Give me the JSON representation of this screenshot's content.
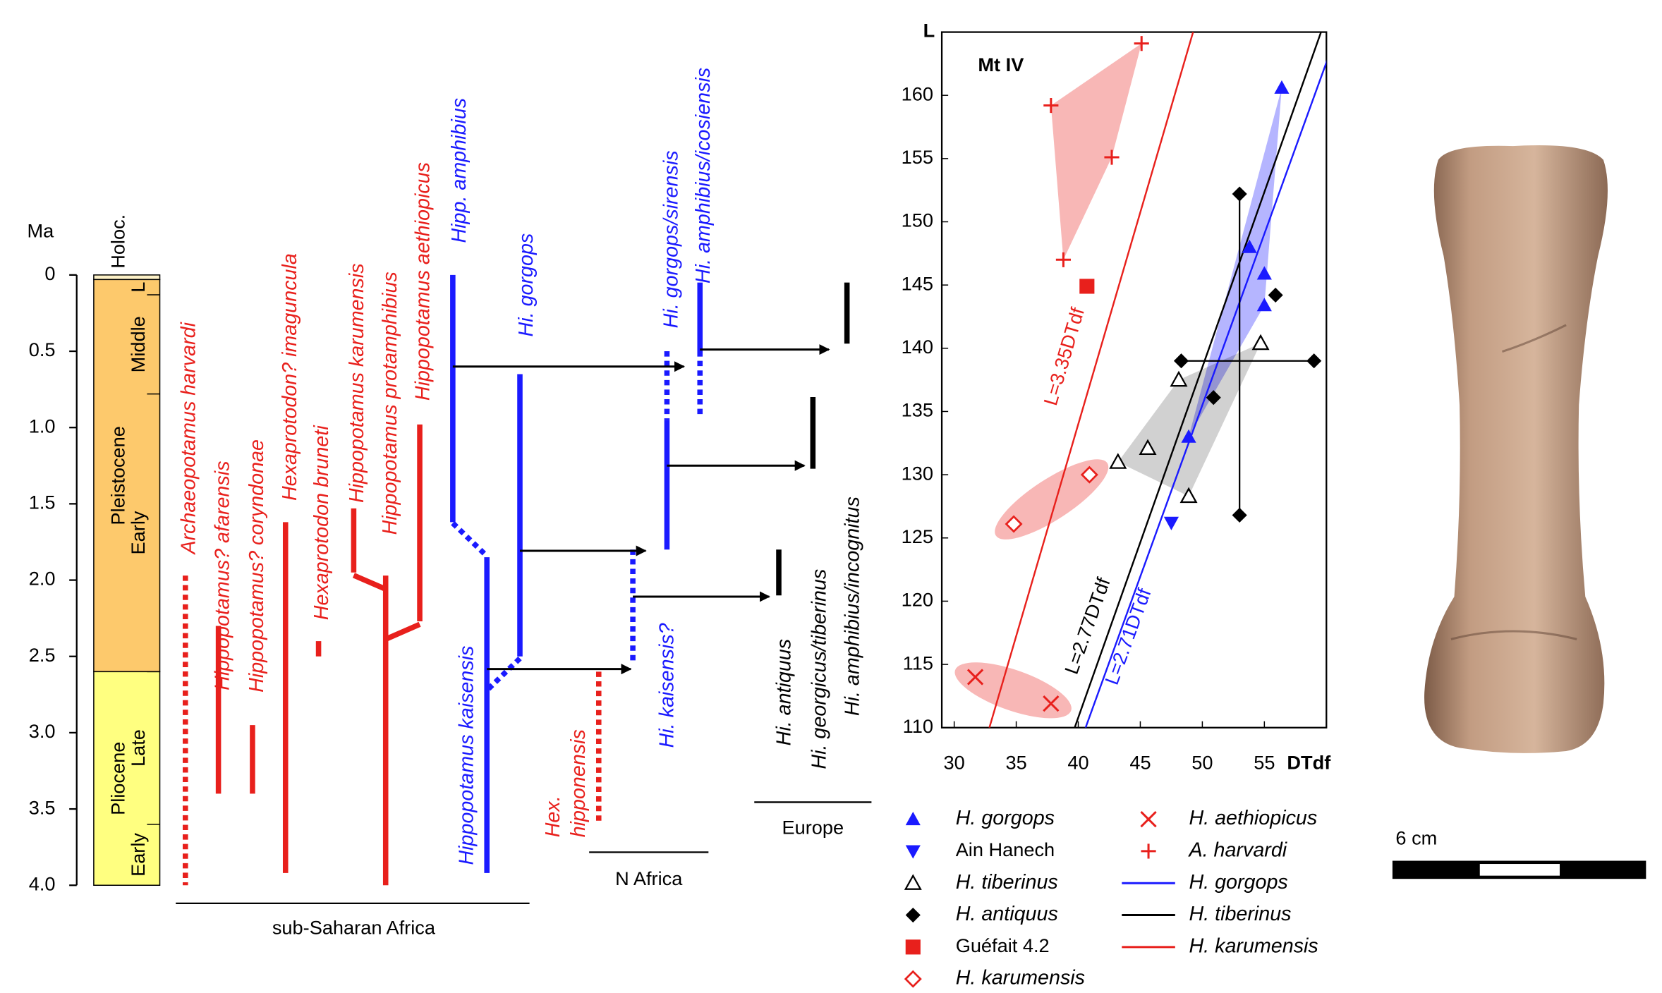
{
  "chart_data": [
    {
      "type": "range",
      "y_label": "Ma",
      "ylim": [
        0,
        4
      ],
      "yticks": [
        0,
        0.5,
        {
          "value": 1,
          "label": "1.0"
        },
        1.5,
        {
          "value": 2,
          "label": "2.0"
        },
        2.5,
        {
          "value": 3,
          "label": "3.0"
        },
        3.5,
        {
          "value": 4,
          "label": "4.0"
        }
      ],
      "holocene": {
        "name": "Holoc.",
        "range": [
          0,
          0.03
        ]
      },
      "epochs": [
        {
          "name": "Pleistocene",
          "range": [
            0.03,
            2.6
          ],
          "color": "#fdc96c"
        },
        {
          "name": "Pliocene",
          "range": [
            2.6,
            4
          ],
          "color": "#ffff80"
        }
      ],
      "stages": [
        {
          "name": "L",
          "range": [
            0.03,
            0.13
          ]
        },
        {
          "name": "Middle",
          "range": [
            0.13,
            0.78
          ]
        },
        {
          "name": "Early",
          "range": [
            0.78,
            2.6
          ]
        },
        {
          "name": "Late",
          "range": [
            2.6,
            3.6
          ]
        },
        {
          "name": "Early",
          "range": [
            3.6,
            4
          ]
        }
      ],
      "taxa": [
        {
          "name": [
            "Archaeopotamus harvardi"
          ],
          "color": "#e8201c",
          "segments": [
            {
              "range": [
                1.97,
                4
              ],
              "style": "dotted"
            }
          ]
        },
        {
          "name": [
            "Hippopotamus? afarensis"
          ],
          "color": "#e8201c",
          "segments": [
            {
              "range": [
                2.3,
                3.4
              ],
              "style": "solid"
            }
          ]
        },
        {
          "name": [
            "Hippopotamus? coryndonae"
          ],
          "color": "#e8201c",
          "segments": [
            {
              "range": [
                2.95,
                3.4
              ],
              "style": "solid"
            }
          ]
        },
        {
          "name": [
            "Hexaprotodon? imaguncula"
          ],
          "color": "#e8201c",
          "segments": [
            {
              "range": [
                1.62,
                3.92
              ],
              "style": "solid"
            }
          ]
        },
        {
          "name": [
            "Hexaprotodon bruneti"
          ],
          "color": "#e8201c",
          "segments": [
            {
              "range": [
                2.4,
                2.5
              ],
              "style": "solid"
            }
          ]
        },
        {
          "name": [
            "Hippopotamus karumensis"
          ],
          "color": "#e8201c",
          "segments": [
            {
              "range": [
                1.53,
                1.95
              ],
              "style": "solid"
            }
          ]
        },
        {
          "name": [
            "Hippopotamus protamphibius"
          ],
          "color": "#e8201c",
          "segments": [
            {
              "range": [
                1.97,
                4
              ],
              "style": "solid"
            }
          ]
        },
        {
          "name": [
            "Hippopotamus aethiopicus"
          ],
          "color": "#e8201c",
          "segments": [
            {
              "range": [
                0.98,
                2.27
              ],
              "style": "solid"
            }
          ]
        },
        {
          "name": [
            "Hipp. amphibius"
          ],
          "color": "#1a1aff",
          "segments": [
            {
              "range": [
                0,
                1.62
              ],
              "style": "solid"
            }
          ]
        },
        {
          "name": [
            "Hippopotamus kaisensis"
          ],
          "color": "#1a1aff",
          "segments": [
            {
              "range": [
                1.85,
                3.92
              ],
              "style": "solid"
            }
          ]
        },
        {
          "name": [
            "Hi. gorgops"
          ],
          "color": "#1a1aff",
          "segments": [
            {
              "range": [
                0.65,
                2.5
              ],
              "style": "solid"
            }
          ]
        },
        {
          "name": [
            "Hex.",
            "hipponensis"
          ],
          "color": "#e8201c",
          "segments": [
            {
              "range": [
                2.6,
                3.6
              ],
              "style": "dotted"
            }
          ]
        },
        {
          "name": [
            "Hi. kaisensis?"
          ],
          "color": "#1a1aff",
          "segments": [
            {
              "range": [
                1.8,
                2.55
              ],
              "style": "dotted"
            }
          ]
        },
        {
          "name": [
            "Hi. gorgops/sirensis"
          ],
          "color": "#1a1aff",
          "segments": [
            {
              "range": [
                0.5,
                0.95
              ],
              "style": "dotted"
            },
            {
              "range": [
                0.95,
                1.8
              ],
              "style": "solid"
            }
          ]
        },
        {
          "name": [
            "Hi. amphibius/icosiensis"
          ],
          "color": "#1a1aff",
          "segments": [
            {
              "range": [
                0.05,
                0.5
              ],
              "style": "solid"
            },
            {
              "range": [
                0.5,
                0.93
              ],
              "style": "dotted"
            }
          ]
        },
        {
          "name": [
            "Hi. antiquus"
          ],
          "color": "#000000",
          "segments": [
            {
              "range": [
                1.8,
                2.1
              ],
              "style": "solid"
            }
          ]
        },
        {
          "name": [
            "Hi. georgicus/tiberinus"
          ],
          "color": "#000000",
          "segments": [
            {
              "range": [
                0.8,
                1.27
              ],
              "style": "solid"
            }
          ]
        },
        {
          "name": [
            "Hi. amphibius/incognitus"
          ],
          "color": "#000000",
          "segments": [
            {
              "range": [
                0.05,
                0.45
              ],
              "style": "solid"
            }
          ]
        }
      ],
      "regions": [
        "sub-Saharan Africa",
        "N Africa",
        "Europe"
      ]
    },
    {
      "type": "scatter",
      "title": "Mt IV",
      "x_label": "DTdf",
      "y_label": "L",
      "xlim": [
        29,
        60
      ],
      "ylim": [
        110,
        165
      ],
      "xticks": [
        30,
        35,
        40,
        45,
        50,
        55
      ],
      "yticks": [
        110,
        115,
        120,
        125,
        130,
        135,
        140,
        145,
        150,
        155,
        160
      ],
      "series": [
        {
          "name": "H. gorgops",
          "marker": "triangle-up",
          "color": "#1a1aff",
          "area": "hull",
          "x": [
            56.4,
            53.8,
            55,
            55,
            48.9
          ],
          "y": [
            160.6,
            148,
            145.9,
            143.4,
            133
          ]
        },
        {
          "name": "Ain Hanech",
          "marker": "triangle-down",
          "color": "#1a1aff",
          "x": [
            47.5
          ],
          "y": [
            126.2
          ]
        },
        {
          "name": "H. tiberinus",
          "marker": "open-triangle",
          "color": "#000000",
          "area": "hull",
          "x": [
            54.7,
            48.1,
            45.6,
            43.2,
            48.9
          ],
          "y": [
            140.4,
            137.5,
            132.1,
            131,
            128.3
          ]
        },
        {
          "name": "H. antiquus",
          "marker": "diamond",
          "color": "#000000",
          "x": [
            55.9,
            50.9
          ],
          "y": [
            144.2,
            136.1
          ],
          "error_bar": {
            "x": 53,
            "y": 139,
            "x_range": [
              48.3,
              59
            ],
            "y_range": [
              126.8,
              152.2
            ]
          }
        },
        {
          "name": "Guéfait 4.2",
          "marker": "square",
          "color": "#e8201c",
          "x": [
            40.7
          ],
          "y": [
            144.9
          ]
        },
        {
          "name": "H. karumensis",
          "marker": "open-diamond",
          "color": "#e8201c",
          "area": "ellipse",
          "x": [
            40.9,
            34.8
          ],
          "y": [
            130,
            126.1
          ]
        },
        {
          "name": "H. aethiopicus",
          "marker": "cross",
          "color": "#e8201c",
          "area": "ellipse",
          "x": [
            31.7,
            37.8
          ],
          "y": [
            114,
            111.9
          ]
        },
        {
          "name": "A. harvardi",
          "marker": "plus",
          "color": "#e8201c",
          "area": "hull",
          "x": [
            45.1,
            37.8,
            42.7,
            38.8
          ],
          "y": [
            164.1,
            159.2,
            155.1,
            147
          ]
        }
      ],
      "lines": [
        {
          "name": "H. gorgops",
          "color": "#1a1aff",
          "slope": 2.71,
          "label": "L=2.71DTdf"
        },
        {
          "name": "H. tiberinus",
          "color": "#000000",
          "slope": 2.77,
          "label": "L=2.77DTdf"
        },
        {
          "name": "H. karumensis",
          "color": "#e8201c",
          "slope": 3.35,
          "label": "L=3.35DTdf"
        }
      ]
    }
  ],
  "photo": {
    "scale_label": "6 cm"
  }
}
